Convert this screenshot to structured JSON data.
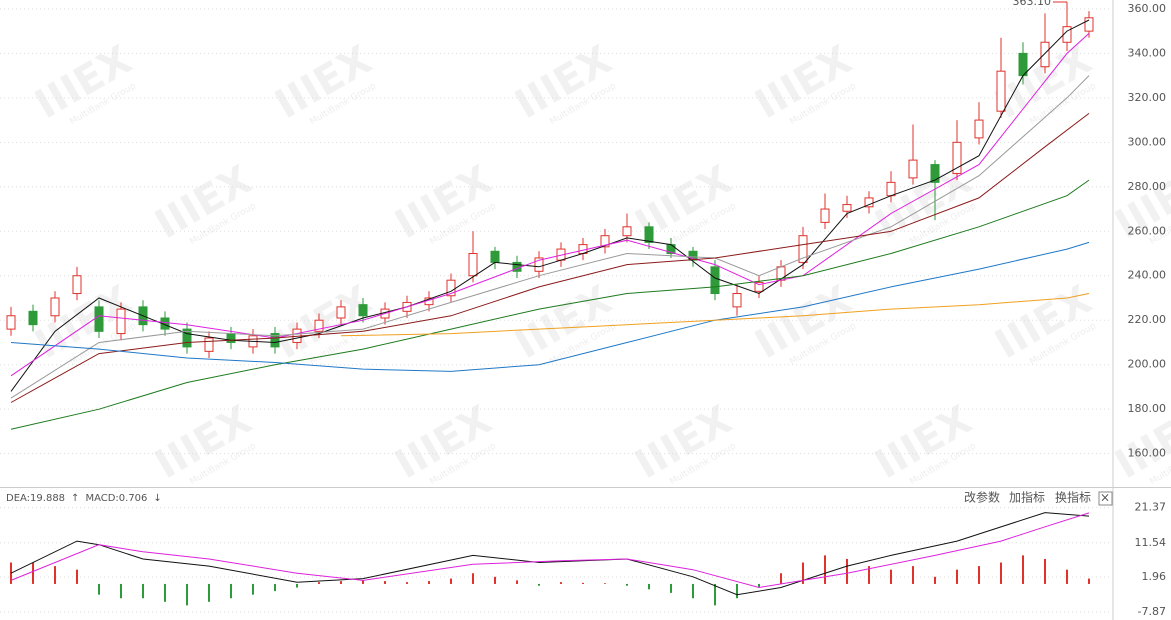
{
  "chart_data": [
    {
      "type": "candlestick",
      "up_color": "#e0312b",
      "down_color": "#2e9a3a",
      "ylim": [
        145,
        364
      ],
      "yticks": [
        {
          "value": 160,
          "label": "160.00"
        },
        {
          "value": 180,
          "label": "180.00"
        },
        {
          "value": 200,
          "label": "200.00"
        },
        {
          "value": 220,
          "label": "220.00"
        },
        {
          "value": 240,
          "label": "240.00"
        },
        {
          "value": 260,
          "label": "260.00"
        },
        {
          "value": 280,
          "label": "280.00"
        },
        {
          "value": 300,
          "label": "300.00"
        },
        {
          "value": 320,
          "label": "320.00"
        },
        {
          "value": 340,
          "label": "340.00"
        },
        {
          "value": 360,
          "label": "360.00"
        }
      ],
      "grid": true,
      "open": [
        216,
        224,
        222,
        232,
        226,
        214,
        226,
        221,
        216,
        206,
        214,
        208,
        214,
        210,
        215,
        221,
        227,
        221,
        224,
        227,
        231,
        240,
        251,
        246,
        242,
        247,
        250,
        253,
        258,
        262,
        254,
        251,
        244,
        226,
        233,
        238,
        246,
        264,
        269,
        271,
        276,
        284,
        290,
        286,
        302,
        314,
        340,
        334,
        345,
        350
      ],
      "high": [
        226,
        227,
        233,
        244,
        229,
        228,
        229,
        224,
        219,
        215,
        217,
        216,
        217,
        219,
        223,
        229,
        230,
        228,
        231,
        233,
        241,
        260,
        253,
        249,
        251,
        255,
        257,
        261,
        268,
        264,
        257,
        253,
        247,
        236,
        240,
        247,
        262,
        277,
        276,
        278,
        287,
        308,
        292,
        310,
        318,
        347,
        345,
        358,
        363.1,
        359
      ],
      "low": [
        213,
        215,
        219,
        229,
        212,
        211,
        215,
        213,
        205,
        203,
        207,
        205,
        205,
        207,
        212,
        218,
        219,
        218,
        221,
        224,
        228,
        237,
        243,
        239,
        239,
        244,
        247,
        250,
        255,
        252,
        248,
        244,
        229,
        222,
        230,
        235,
        243,
        261,
        266,
        268,
        273,
        281,
        265,
        283,
        299,
        311,
        326,
        331,
        341,
        347
      ],
      "close": [
        222,
        218,
        230,
        240,
        215,
        225,
        218,
        216,
        208,
        212,
        210,
        213,
        208,
        216,
        220,
        226,
        222,
        225,
        228,
        230,
        238,
        250,
        246,
        242,
        248,
        252,
        254,
        258,
        262,
        255,
        250,
        247,
        232,
        232,
        237,
        244,
        258,
        270,
        272,
        275,
        282,
        292,
        282,
        300,
        310,
        332,
        330,
        345,
        352,
        356
      ],
      "high_label": {
        "index": 48,
        "value": 363.1,
        "label": "363.10"
      },
      "series": [
        {
          "color": "#111111",
          "x": [
            0,
            2,
            4,
            6,
            8,
            10,
            12,
            14,
            16,
            18,
            20,
            22,
            24,
            26,
            28,
            30,
            32,
            34,
            36,
            38,
            40,
            42,
            44,
            46,
            48,
            49
          ],
          "values": [
            188,
            215,
            230,
            222,
            214,
            211,
            210,
            214,
            221,
            226,
            233,
            246,
            244,
            250,
            257,
            254,
            239,
            232,
            245,
            268,
            276,
            283,
            294,
            330,
            350,
            355
          ]
        },
        {
          "color": "#e020e0",
          "x": [
            0,
            4,
            8,
            12,
            16,
            20,
            24,
            28,
            32,
            34,
            36,
            40,
            44,
            46,
            48,
            49
          ],
          "values": [
            195,
            222,
            218,
            212,
            220,
            232,
            247,
            256,
            245,
            236,
            240,
            268,
            290,
            315,
            340,
            349
          ]
        },
        {
          "color": "#999999",
          "x": [
            0,
            4,
            8,
            12,
            16,
            20,
            24,
            28,
            32,
            34,
            36,
            40,
            44,
            48,
            49
          ],
          "values": [
            185,
            210,
            215,
            213,
            216,
            228,
            240,
            250,
            248,
            240,
            248,
            262,
            285,
            320,
            330
          ]
        },
        {
          "color": "#8b1a1a",
          "x": [
            0,
            4,
            8,
            12,
            16,
            20,
            24,
            28,
            32,
            36,
            40,
            44,
            47,
            49
          ],
          "values": [
            183,
            205,
            210,
            212,
            215,
            222,
            235,
            245,
            248,
            254,
            260,
            275,
            298,
            313
          ]
        },
        {
          "color": "#1e7a1e",
          "x": [
            0,
            4,
            8,
            12,
            16,
            20,
            24,
            28,
            32,
            36,
            40,
            44,
            48,
            49
          ],
          "values": [
            171,
            180,
            192,
            200,
            207,
            216,
            225,
            232,
            235,
            240,
            250,
            262,
            276,
            283
          ]
        },
        {
          "color": "#1f78c8",
          "x": [
            0,
            4,
            8,
            12,
            16,
            20,
            24,
            28,
            32,
            36,
            40,
            44,
            48,
            49
          ],
          "values": [
            210,
            207,
            203,
            201,
            198,
            197,
            200,
            210,
            220,
            226,
            235,
            243,
            252,
            255
          ]
        },
        {
          "color": "#f0a020",
          "x": [
            15,
            20,
            24,
            28,
            32,
            36,
            40,
            44,
            48,
            49
          ],
          "values": [
            213,
            214,
            216,
            218,
            220,
            222,
            225,
            227,
            230,
            232
          ]
        }
      ],
      "watermark": {
        "logo": "IIIEX",
        "text": "MultiBank Group"
      }
    },
    {
      "type": "macd",
      "ylim": [
        -10.1,
        26.6
      ],
      "yticks": [
        -7.87,
        1.96,
        11.54,
        21.37
      ],
      "labels": [
        {
          "text": "DEA:19.888",
          "color": "#cc00cc"
        },
        {
          "text": "↑",
          "color": "#cc00cc"
        },
        {
          "text": "MACD:0.706",
          "color": "#555555"
        },
        {
          "text": "↓",
          "color": "#555555"
        }
      ],
      "buttons": [
        "改参数",
        "加指标",
        "换指标",
        "×"
      ],
      "histogram": {
        "up_color": "#e0312b",
        "down_color": "#2e9a3a",
        "values": [
          6,
          6,
          5,
          4,
          -3,
          -4,
          -4,
          -5,
          -6,
          -5,
          -4,
          -3,
          -2,
          -1,
          0.5,
          0.8,
          1,
          0.8,
          0.5,
          0.8,
          1.5,
          3,
          2,
          1,
          -0.5,
          0.5,
          0.3,
          0.2,
          -0.5,
          -1.5,
          -2.5,
          -4,
          -6,
          -4,
          -1,
          3,
          6,
          8,
          7,
          5,
          4,
          5,
          2,
          4,
          5,
          6,
          8,
          7,
          4,
          1.5
        ]
      },
      "series": [
        {
          "color": "#111111",
          "x": [
            0,
            3,
            4,
            6,
            9,
            13,
            16,
            21,
            24,
            28,
            31,
            33,
            35,
            38,
            40,
            43,
            47,
            49
          ],
          "values": [
            3,
            12,
            11,
            7,
            5,
            0.5,
            1.5,
            8,
            6,
            7,
            2,
            -3,
            -1,
            5,
            8,
            12,
            20,
            19
          ]
        },
        {
          "color": "#dd22dd",
          "x": [
            0,
            4,
            6,
            9,
            13,
            16,
            21,
            25,
            28,
            31,
            34,
            36,
            38,
            42,
            45,
            47,
            49
          ],
          "values": [
            1,
            11,
            9,
            7,
            3,
            1,
            5.5,
            6.5,
            7,
            4,
            -1,
            1,
            3,
            8,
            12,
            16,
            19.9
          ]
        }
      ]
    }
  ]
}
